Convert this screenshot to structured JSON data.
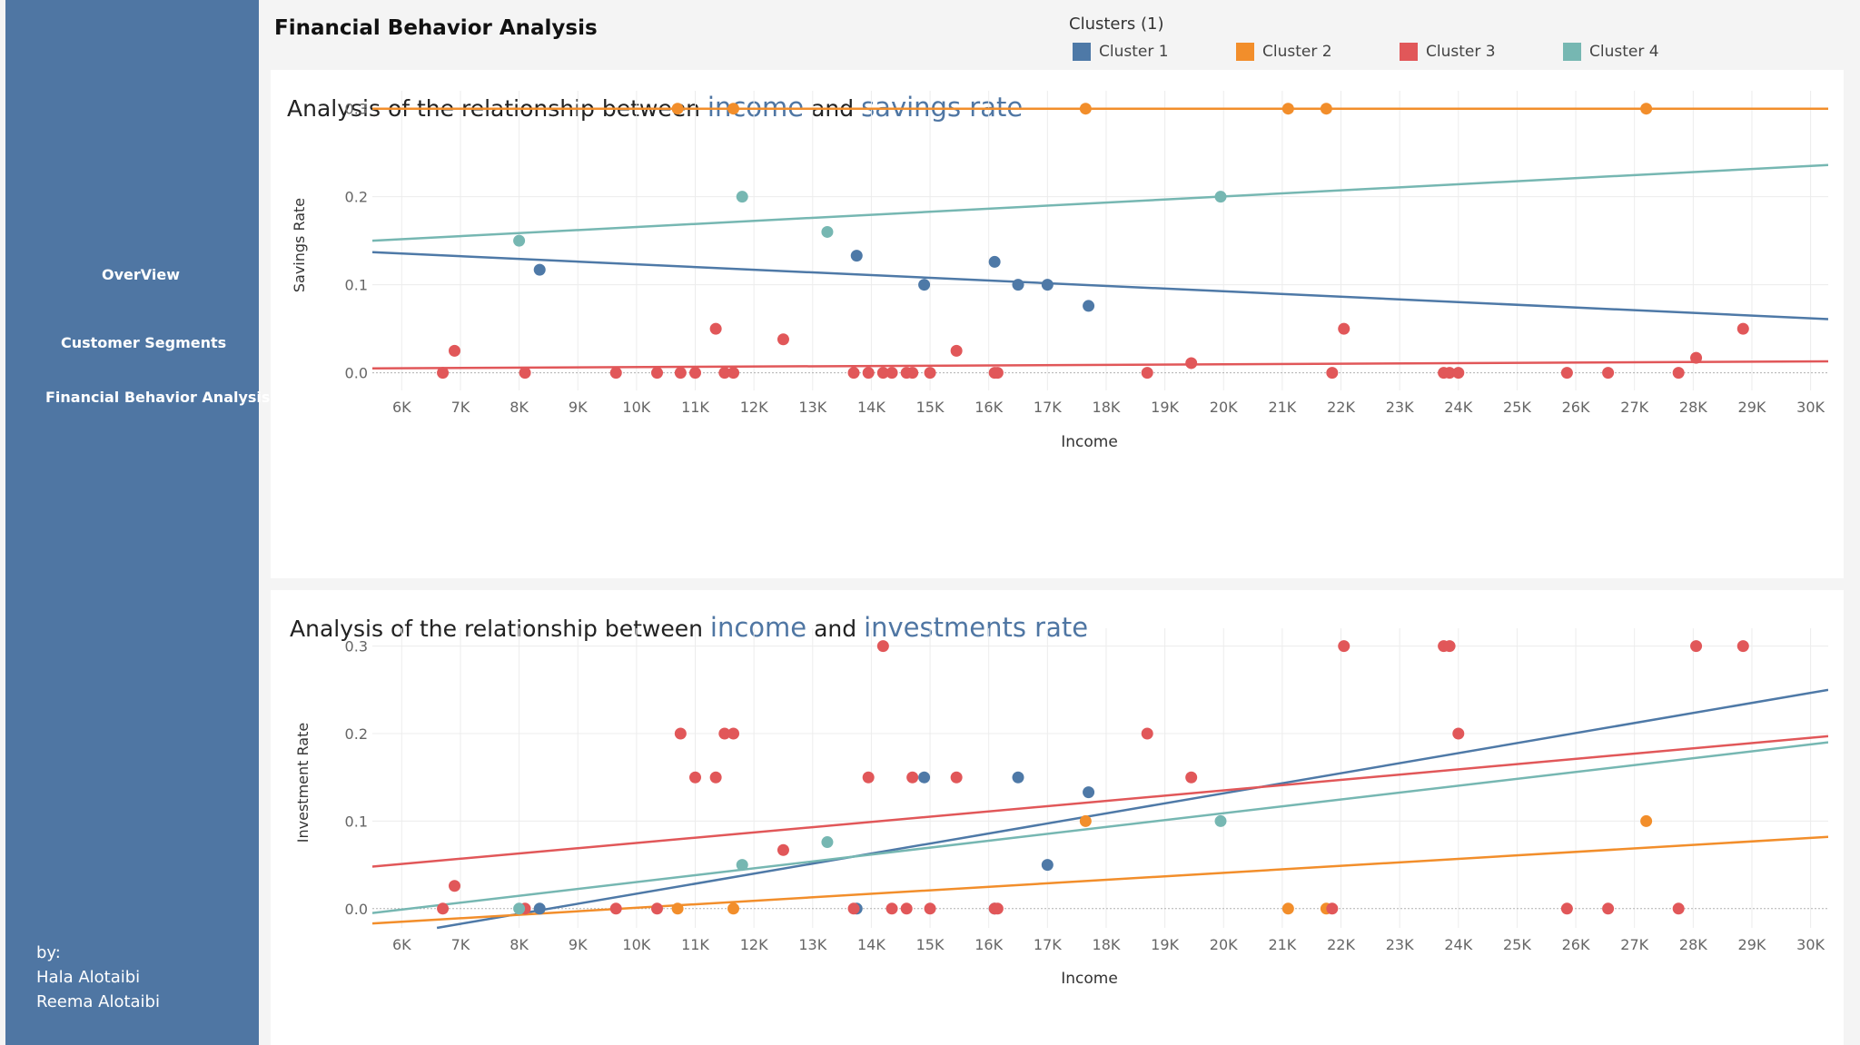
{
  "sidebar": {
    "nav": [
      {
        "label": "OverView"
      },
      {
        "label": "Customer Segments"
      },
      {
        "label": "Financial Behavior Analysis"
      }
    ],
    "credits": {
      "by": "by:",
      "authors": [
        "Hala Alotaibi",
        "Reema Alotaibi"
      ]
    }
  },
  "header": {
    "title": "Financial Behavior Analysis"
  },
  "legend": {
    "title": "Clusters (1)",
    "items": [
      {
        "label": "Cluster 1",
        "color": "#4e79a7"
      },
      {
        "label": "Cluster 2",
        "color": "#f28e2b"
      },
      {
        "label": "Cluster 3",
        "color": "#e15759"
      },
      {
        "label": "Cluster 4",
        "color": "#76b7b2"
      }
    ]
  },
  "chart_data": [
    {
      "type": "scatter",
      "title": {
        "prefix": "Analysis of the relationship between ",
        "var1": "income",
        "middle": " and ",
        "var2": "savings rate"
      },
      "xlabel": "Income",
      "ylabel": "Savings Rate",
      "xlim": [
        5500,
        30300
      ],
      "ylim": [
        -0.02,
        0.31
      ],
      "xticks": [
        6000,
        7000,
        8000,
        9000,
        10000,
        11000,
        12000,
        13000,
        14000,
        15000,
        16000,
        17000,
        18000,
        19000,
        20000,
        21000,
        22000,
        23000,
        24000,
        25000,
        26000,
        27000,
        28000,
        29000,
        30000
      ],
      "xtick_labels": [
        "6K",
        "7K",
        "8K",
        "9K",
        "10K",
        "11K",
        "12K",
        "13K",
        "14K",
        "15K",
        "16K",
        "17K",
        "18K",
        "19K",
        "20K",
        "21K",
        "22K",
        "23K",
        "24K",
        "25K",
        "26K",
        "27K",
        "28K",
        "29K",
        "30K"
      ],
      "yticks": [
        0,
        0.1,
        0.2,
        0.3
      ],
      "ytick_labels": [
        "0.0",
        "0.1",
        "0.2",
        "0.3"
      ],
      "grid": true,
      "series": [
        {
          "name": "Cluster 1",
          "color": "#4e79a7",
          "points": [
            [
              8350,
              0.117
            ],
            [
              13750,
              0.133
            ],
            [
              14900,
              0.1
            ],
            [
              16100,
              0.126
            ],
            [
              16500,
              0.1
            ],
            [
              17000,
              0.1
            ],
            [
              17700,
              0.076
            ]
          ],
          "trend": [
            [
              5500,
              0.137
            ],
            [
              30300,
              0.061
            ]
          ]
        },
        {
          "name": "Cluster 2",
          "color": "#f28e2b",
          "points": [
            [
              10700,
              0.3
            ],
            [
              11650,
              0.3
            ],
            [
              17650,
              0.3
            ],
            [
              21100,
              0.3
            ],
            [
              21750,
              0.3
            ],
            [
              27200,
              0.3
            ]
          ],
          "trend": [
            [
              5500,
              0.3
            ],
            [
              30300,
              0.3
            ]
          ]
        },
        {
          "name": "Cluster 3",
          "color": "#e15759",
          "points": [
            [
              6700,
              0
            ],
            [
              6900,
              0.025
            ],
            [
              8100,
              0
            ],
            [
              9650,
              0
            ],
            [
              10350,
              0
            ],
            [
              10750,
              0
            ],
            [
              11000,
              0
            ],
            [
              11350,
              0.05
            ],
            [
              11500,
              0
            ],
            [
              11650,
              0
            ],
            [
              12500,
              0.038
            ],
            [
              13700,
              0
            ],
            [
              13950,
              0
            ],
            [
              14200,
              0
            ],
            [
              14350,
              0
            ],
            [
              14600,
              0
            ],
            [
              14700,
              0
            ],
            [
              15000,
              0
            ],
            [
              15450,
              0.025
            ],
            [
              16100,
              0
            ],
            [
              16150,
              0
            ],
            [
              18700,
              0
            ],
            [
              19450,
              0.011
            ],
            [
              21850,
              0
            ],
            [
              22050,
              0.05
            ],
            [
              23750,
              0
            ],
            [
              23850,
              0
            ],
            [
              24000,
              0
            ],
            [
              25850,
              0
            ],
            [
              26550,
              0
            ],
            [
              27750,
              0
            ],
            [
              28050,
              0.017
            ],
            [
              28850,
              0.05
            ]
          ],
          "trend": [
            [
              5500,
              0.005
            ],
            [
              30300,
              0.013
            ]
          ]
        },
        {
          "name": "Cluster 4",
          "color": "#76b7b2",
          "points": [
            [
              8000,
              0.15
            ],
            [
              11800,
              0.2
            ],
            [
              13250,
              0.16
            ],
            [
              19950,
              0.2
            ]
          ],
          "trend": [
            [
              5500,
              0.15
            ],
            [
              30300,
              0.236
            ]
          ]
        }
      ]
    },
    {
      "type": "scatter",
      "title": {
        "prefix": "Analysis of the relationship between ",
        "var1": "income",
        "middle": " and ",
        "var2": "investments rate"
      },
      "xlabel": "Income",
      "ylabel": "Investment Rate",
      "xlim": [
        5500,
        30300
      ],
      "ylim": [
        -0.022,
        0.31
      ],
      "xticks": [
        6000,
        7000,
        8000,
        9000,
        10000,
        11000,
        12000,
        13000,
        14000,
        15000,
        16000,
        17000,
        18000,
        19000,
        20000,
        21000,
        22000,
        23000,
        24000,
        25000,
        26000,
        27000,
        28000,
        29000,
        30000
      ],
      "xtick_labels": [
        "6K",
        "7K",
        "8K",
        "9K",
        "10K",
        "11K",
        "12K",
        "13K",
        "14K",
        "15K",
        "16K",
        "17K",
        "18K",
        "19K",
        "20K",
        "21K",
        "22K",
        "23K",
        "24K",
        "25K",
        "26K",
        "27K",
        "28K",
        "29K",
        "30K"
      ],
      "yticks": [
        0,
        0.1,
        0.2,
        0.3
      ],
      "ytick_labels": [
        "0.0",
        "0.1",
        "0.2",
        "0.3"
      ],
      "grid": true,
      "series": [
        {
          "name": "Cluster 1",
          "color": "#4e79a7",
          "points": [
            [
              8350,
              0
            ],
            [
              13750,
              0
            ],
            [
              14900,
              0.15
            ],
            [
              16100,
              0
            ],
            [
              16500,
              0.15
            ],
            [
              17000,
              0.05
            ],
            [
              17700,
              0.133
            ]
          ],
          "trend": [
            [
              6600,
              -0.022
            ],
            [
              30300,
              0.25
            ]
          ]
        },
        {
          "name": "Cluster 2",
          "color": "#f28e2b",
          "points": [
            [
              10700,
              0
            ],
            [
              11650,
              0
            ],
            [
              17650,
              0.1
            ],
            [
              21100,
              0
            ],
            [
              21750,
              0
            ],
            [
              27200,
              0.1
            ]
          ],
          "trend": [
            [
              5500,
              -0.017
            ],
            [
              30300,
              0.082
            ]
          ]
        },
        {
          "name": "Cluster 3",
          "color": "#e15759",
          "points": [
            [
              6700,
              0
            ],
            [
              6900,
              0.026
            ],
            [
              8100,
              0
            ],
            [
              9650,
              0
            ],
            [
              10350,
              0
            ],
            [
              10750,
              0.2
            ],
            [
              11000,
              0.15
            ],
            [
              11350,
              0.15
            ],
            [
              11500,
              0.2
            ],
            [
              11650,
              0.2
            ],
            [
              12500,
              0.067
            ],
            [
              13700,
              0
            ],
            [
              13950,
              0.15
            ],
            [
              14200,
              0.3
            ],
            [
              14350,
              0
            ],
            [
              14600,
              0
            ],
            [
              14700,
              0.15
            ],
            [
              15000,
              0
            ],
            [
              15450,
              0.15
            ],
            [
              16100,
              0
            ],
            [
              16150,
              0
            ],
            [
              18700,
              0.2
            ],
            [
              19450,
              0.15
            ],
            [
              21850,
              0
            ],
            [
              22050,
              0.3
            ],
            [
              23750,
              0.3
            ],
            [
              23850,
              0.3
            ],
            [
              24000,
              0.2
            ],
            [
              25850,
              0
            ],
            [
              26550,
              0
            ],
            [
              27750,
              0
            ],
            [
              28050,
              0.3
            ],
            [
              28850,
              0.3
            ]
          ],
          "trend": [
            [
              5500,
              0.048
            ],
            [
              30300,
              0.197
            ]
          ]
        },
        {
          "name": "Cluster 4",
          "color": "#76b7b2",
          "points": [
            [
              8000,
              0
            ],
            [
              11800,
              0.05
            ],
            [
              13250,
              0.076
            ],
            [
              19950,
              0.1
            ]
          ],
          "trend": [
            [
              5500,
              -0.005
            ],
            [
              30300,
              0.19
            ]
          ]
        }
      ]
    }
  ]
}
